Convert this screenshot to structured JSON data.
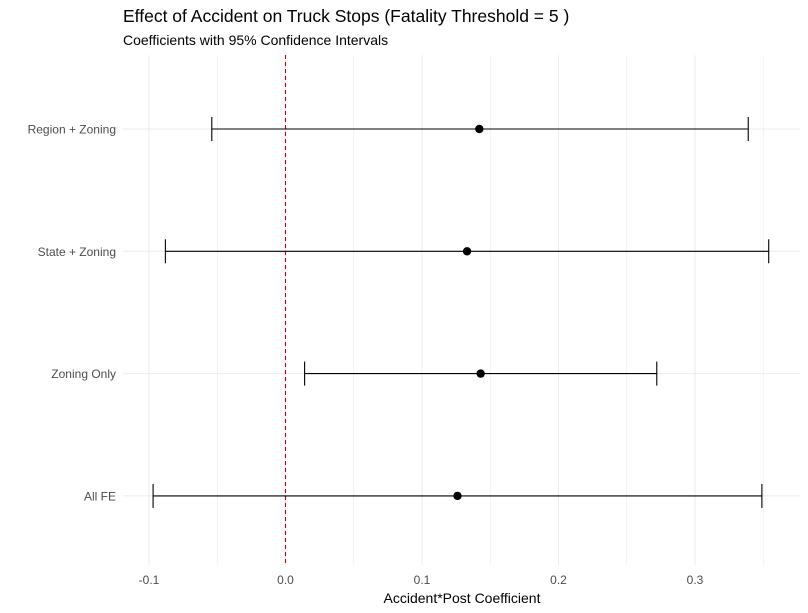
{
  "chart_data": {
    "type": "scatter",
    "title": "Effect of Accident on Truck Stops (Fatality Threshold = 5 )",
    "subtitle": "Coefficients with 95% Confidence Intervals",
    "xlabel": "Accident*Post Coefficient",
    "ylabel": "",
    "xlim": [
      -0.11,
      0.376
    ],
    "x_ticks": [
      {
        "value": -0.1,
        "label": "-0.1"
      },
      {
        "value": 0.0,
        "label": "0.0"
      },
      {
        "value": 0.1,
        "label": "0.1"
      },
      {
        "value": 0.2,
        "label": "0.2"
      },
      {
        "value": 0.3,
        "label": "0.3"
      }
    ],
    "categories": [
      "Region + Zoning",
      "State + Zoning",
      "Zoning Only",
      "All FE"
    ],
    "estimates": [
      {
        "model": "Region + Zoning",
        "coef": 0.142,
        "ci_low": -0.054,
        "ci_high": 0.339
      },
      {
        "model": "State + Zoning",
        "coef": 0.133,
        "ci_low": -0.088,
        "ci_high": 0.354
      },
      {
        "model": "Zoning Only",
        "coef": 0.143,
        "ci_low": 0.014,
        "ci_high": 0.272
      },
      {
        "model": "All FE",
        "coef": 0.126,
        "ci_low": -0.097,
        "ci_high": 0.349
      }
    ],
    "reference_line": {
      "x": 0,
      "style": "dashed",
      "color": "#cc0000"
    },
    "grid": true,
    "colors": {
      "point": "#000000",
      "grid": "#ebebeb",
      "reference": "#cc0000",
      "tick_text": "#4d4d4d"
    }
  }
}
